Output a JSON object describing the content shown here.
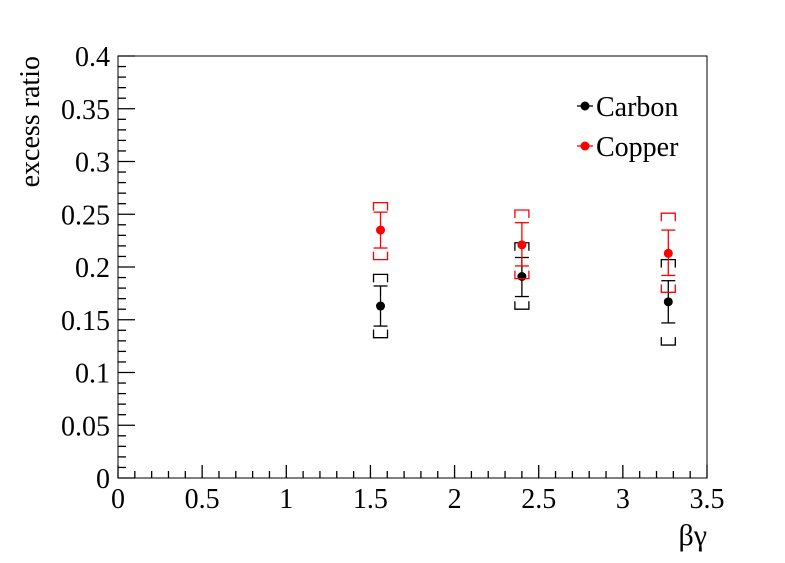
{
  "chart_data": {
    "type": "scatter",
    "title": "",
    "xlabel": "βγ",
    "ylabel": "excess ratio",
    "xlim": [
      0,
      3.5
    ],
    "ylim": [
      0,
      0.4
    ],
    "x_ticks": [
      "0",
      "0.5",
      "1",
      "1.5",
      "2",
      "2.5",
      "3",
      "3.5"
    ],
    "y_ticks": [
      "0",
      "0.05",
      "0.1",
      "0.15",
      "0.2",
      "0.25",
      "0.3",
      "0.35",
      "0.4"
    ],
    "grid": false,
    "legend_position": "top-right",
    "series": [
      {
        "name": "Carbon",
        "color": "#000000",
        "points": [
          {
            "x": 1.56,
            "y": 0.163,
            "stat_lo": 0.144,
            "stat_hi": 0.182,
            "sys_lo": 0.133,
            "sys_hi": 0.193
          },
          {
            "x": 2.4,
            "y": 0.191,
            "stat_lo": 0.172,
            "stat_hi": 0.209,
            "sys_lo": 0.16,
            "sys_hi": 0.223
          },
          {
            "x": 3.27,
            "y": 0.167,
            "stat_lo": 0.147,
            "stat_hi": 0.187,
            "sys_lo": 0.126,
            "sys_hi": 0.207
          }
        ]
      },
      {
        "name": "Copper",
        "color": "#ff0000",
        "points": [
          {
            "x": 1.56,
            "y": 0.235,
            "stat_lo": 0.218,
            "stat_hi": 0.252,
            "sys_lo": 0.207,
            "sys_hi": 0.261
          },
          {
            "x": 2.4,
            "y": 0.221,
            "stat_lo": 0.201,
            "stat_hi": 0.242,
            "sys_lo": 0.189,
            "sys_hi": 0.254
          },
          {
            "x": 3.27,
            "y": 0.213,
            "stat_lo": 0.192,
            "stat_hi": 0.235,
            "sys_lo": 0.176,
            "sys_hi": 0.251
          }
        ]
      }
    ]
  }
}
